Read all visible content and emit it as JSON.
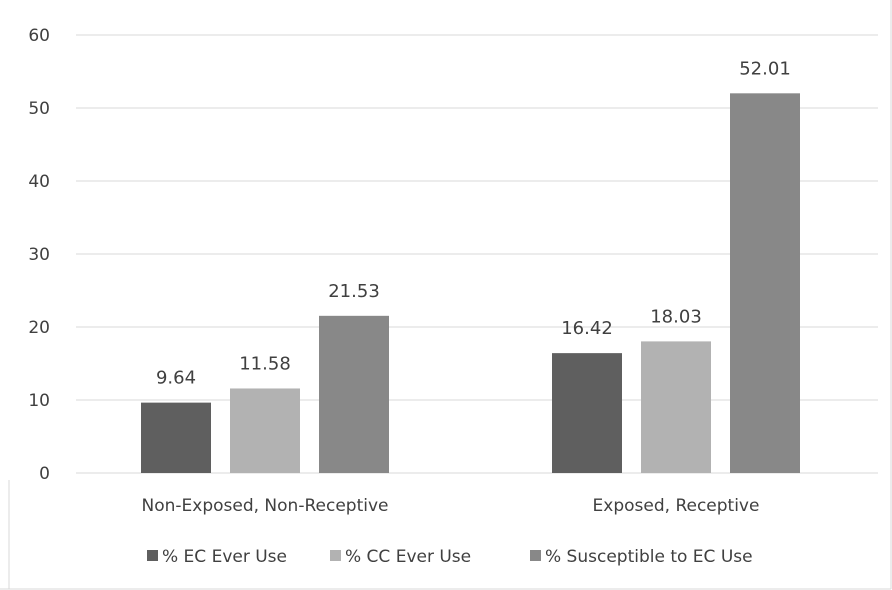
{
  "chart_data": {
    "type": "bar",
    "title": "",
    "xlabel": "",
    "ylabel": "",
    "categories": [
      "Non-Exposed, Non-Receptive",
      "Exposed, Receptive"
    ],
    "series": [
      {
        "name": "% EC Ever Use",
        "values": [
          9.64,
          16.42
        ],
        "labels": [
          "9.64",
          "16.42"
        ],
        "color": "#5f5f5f"
      },
      {
        "name": "% CC Ever Use",
        "values": [
          11.58,
          18.03
        ],
        "labels": [
          "11.58",
          "18.03"
        ],
        "color": "#b2b2b2"
      },
      {
        "name": "% Susceptible to EC Use",
        "values": [
          21.53,
          52.01
        ],
        "labels": [
          "21.53",
          "52.01"
        ],
        "color": "#888888"
      }
    ],
    "ylim": [
      0,
      60
    ],
    "yticks": [
      "0",
      "10",
      "20",
      "30",
      "40",
      "50",
      "60"
    ],
    "grid": true,
    "legend": "bottom",
    "colors": {
      "grid": "#d9d9d9",
      "text": "#404040",
      "border": "#d9d9d9"
    }
  }
}
